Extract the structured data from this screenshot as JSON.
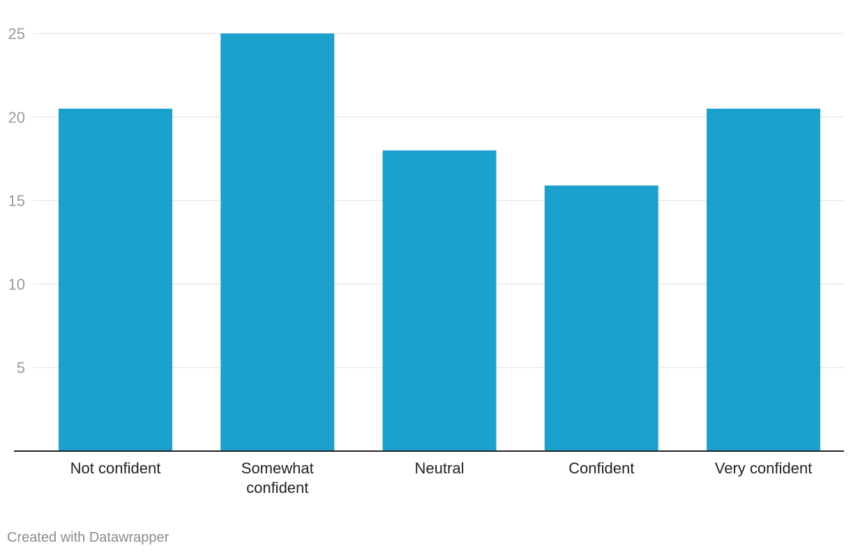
{
  "chart_data": {
    "type": "bar",
    "categories": [
      "Not confident",
      "Somewhat confident",
      "Neutral",
      "Confident",
      "Very confident"
    ],
    "values": [
      20.5,
      25,
      18,
      15.9,
      20.5
    ],
    "title": "",
    "xlabel": "",
    "ylabel": "",
    "ylim": [
      0,
      25
    ],
    "yticks": [
      5,
      10,
      15,
      20,
      25
    ],
    "grid": true,
    "legend": "none",
    "colors": {
      "bar": "#1aa1cd",
      "grid": "#e0e0e0",
      "baseline": "#222222"
    }
  },
  "footer": {
    "credit": "Created with Datawrapper"
  }
}
